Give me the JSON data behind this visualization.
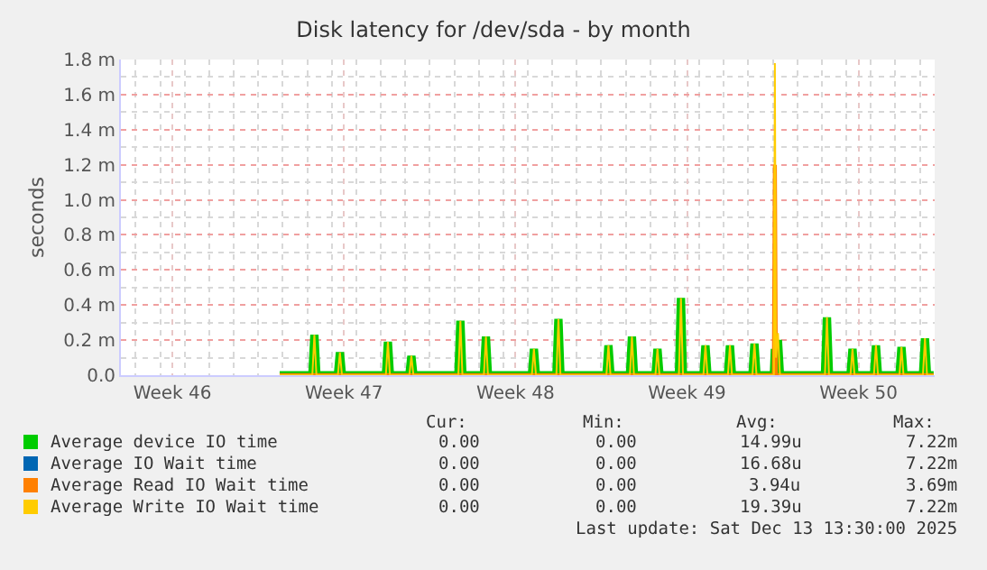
{
  "chart_data": {
    "type": "line",
    "title": "Disk latency for /dev/sda - by month",
    "ylabel": "seconds",
    "x": [
      "2025-11-16T21:00",
      "2025-11-18T05:00",
      "2025-11-18T07:00",
      "2025-11-18T09:00",
      "2025-11-19T06:00",
      "2025-11-19T08:00",
      "2025-11-19T10:00",
      "2025-11-21T05:00",
      "2025-11-21T07:00",
      "2025-11-21T09:00",
      "2025-11-22T04:00",
      "2025-11-22T06:00",
      "2025-11-22T08:00",
      "2025-11-24T04:00",
      "2025-11-24T06:00",
      "2025-11-24T08:00",
      "2025-11-25T05:00",
      "2025-11-25T07:00",
      "2025-11-25T09:00",
      "2025-11-27T04:00",
      "2025-11-27T06:00",
      "2025-11-27T08:00",
      "2025-11-28T04:00",
      "2025-11-28T06:00",
      "2025-11-28T08:00",
      "2025-11-30T05:00",
      "2025-11-30T07:00",
      "2025-11-30T09:00",
      "2025-12-01T04:00",
      "2025-12-01T06:00",
      "2025-12-01T08:00",
      "2025-12-02T05:00",
      "2025-12-02T07:00",
      "2025-12-02T09:00",
      "2025-12-03T04:00",
      "2025-12-03T06:00",
      "2025-12-03T08:00",
      "2025-12-04T04:00",
      "2025-12-04T06:00",
      "2025-12-04T08:00",
      "2025-12-05T04:00",
      "2025-12-05T06:00",
      "2025-12-05T08:00",
      "2025-12-06T04:00",
      "2025-12-06T06:00",
      "2025-12-06T08:00",
      "2025-12-07T01:00",
      "2025-12-07T02:00",
      "2025-12-07T03:00",
      "2025-12-07T05:00",
      "2025-12-07T07:00",
      "2025-12-09T03:00",
      "2025-12-09T05:00",
      "2025-12-09T07:00",
      "2025-12-10T04:00",
      "2025-12-10T06:00",
      "2025-12-10T08:00",
      "2025-12-11T03:00",
      "2025-12-11T05:00",
      "2025-12-11T07:00",
      "2025-12-12T04:00",
      "2025-12-12T06:00",
      "2025-12-12T08:00",
      "2025-12-13T03:00",
      "2025-12-13T05:00",
      "2025-12-13T07:00",
      "2025-12-13T13:30"
    ],
    "series": [
      {
        "name": "Average device IO time",
        "color": "#00cc00",
        "values": [
          0,
          0,
          0.23,
          0,
          0,
          0.13,
          0,
          0,
          0.19,
          0,
          0,
          0.11,
          0,
          0,
          0.31,
          0,
          0,
          0.22,
          0,
          0,
          0.15,
          0,
          0,
          0.32,
          0,
          0,
          0.17,
          0,
          0,
          0.22,
          0,
          0,
          0.15,
          0,
          0,
          0.44,
          0,
          0,
          0.17,
          0,
          0,
          0.17,
          0,
          0,
          0.18,
          0,
          0,
          0.15,
          0,
          0.2,
          0,
          0,
          0.33,
          0,
          0,
          0.15,
          0,
          0,
          0.17,
          0,
          0,
          0.16,
          0,
          0,
          0.21,
          0,
          0
        ]
      },
      {
        "name": "Average IO Wait time",
        "color": "#0066b3",
        "values": [
          null,
          null,
          null,
          null,
          null,
          null,
          null,
          null,
          null,
          null,
          null,
          null,
          null,
          null,
          null,
          null,
          null,
          null,
          null,
          null,
          null,
          null,
          null,
          null,
          null,
          null,
          null,
          null,
          null,
          null,
          null,
          null,
          null,
          null,
          null,
          null,
          null,
          null,
          null,
          null,
          null,
          null,
          null,
          null,
          null,
          null,
          null,
          null,
          null,
          null,
          null,
          null,
          null,
          null,
          null,
          null,
          null,
          null,
          null,
          null,
          null,
          null,
          null,
          null,
          null,
          null,
          null
        ]
      },
      {
        "name": "Average Read IO Wait time",
        "color": "#ff8000",
        "values": [
          0,
          0,
          0,
          0,
          0,
          0,
          0,
          0,
          0,
          0,
          0,
          0,
          0,
          0,
          0,
          0,
          0,
          0,
          0,
          0,
          0,
          0,
          0,
          0,
          0,
          0,
          0,
          0,
          0,
          0,
          0,
          0,
          0,
          0,
          0,
          0,
          0,
          0,
          0,
          0,
          0,
          0,
          0,
          0,
          0,
          0,
          0,
          1.2,
          0,
          0,
          0,
          0,
          0,
          0,
          0,
          0,
          0,
          0,
          0,
          0,
          0,
          0,
          0,
          0,
          0,
          0,
          0
        ]
      },
      {
        "name": "Average Write IO Wait time",
        "color": "#ffcc00",
        "values": [
          0,
          0,
          0.23,
          0,
          0,
          0.13,
          0,
          0,
          0.19,
          0,
          0,
          0.11,
          0,
          0,
          0.31,
          0,
          0,
          0.22,
          0,
          0,
          0.15,
          0,
          0,
          0.32,
          0,
          0,
          0.17,
          0,
          0,
          0.22,
          0,
          0,
          0.15,
          0,
          0,
          0.44,
          0,
          0,
          0.17,
          0,
          0,
          0.17,
          0,
          0,
          0.18,
          0,
          0,
          1.78,
          0.1,
          0.24,
          0,
          0,
          0.33,
          0,
          0,
          0.15,
          0,
          0,
          0.17,
          0,
          0,
          0.16,
          0,
          0,
          0.21,
          0,
          0
        ]
      }
    ],
    "xlim": [
      "2025-11-10T09:30",
      "2025-12-13T14:30"
    ],
    "xticks": [
      {
        "value": "2025-11-12T12:00",
        "label": "Week 46"
      },
      {
        "value": "2025-11-19T12:00",
        "label": "Week 47"
      },
      {
        "value": "2025-11-26T12:00",
        "label": "Week 48"
      },
      {
        "value": "2025-12-03T12:00",
        "label": "Week 49"
      },
      {
        "value": "2025-12-10T12:00",
        "label": "Week 50"
      }
    ],
    "ylim": [
      0,
      1.8
    ],
    "yticks": [
      {
        "value": 0,
        "label": "0.0"
      },
      {
        "value": 0.2,
        "label": "0.2 m"
      },
      {
        "value": 0.4,
        "label": "0.4 m"
      },
      {
        "value": 0.6,
        "label": "0.6 m"
      },
      {
        "value": 0.8,
        "label": "0.8 m"
      },
      {
        "value": 1.0,
        "label": "1.0 m"
      },
      {
        "value": 1.2,
        "label": "1.2 m"
      },
      {
        "value": 1.4,
        "label": "1.4 m"
      },
      {
        "value": 1.6,
        "label": "1.6 m"
      },
      {
        "value": 1.8,
        "label": "1.8 m"
      }
    ],
    "grid": true,
    "legend": "bottom",
    "marker": "none",
    "line_style": "solid",
    "annotations": [
      "Cur:",
      "Min:",
      "Avg:",
      "Max:",
      "0.00",
      "0.00",
      "14.99u",
      "7.22m",
      "0.00",
      "0.00",
      "16.68u",
      "7.22m",
      "0.00",
      "0.00",
      "3.94u",
      "3.69m",
      "0.00",
      "0.00",
      "19.39u",
      "7.22m",
      "Last update: Sat Dec 13 13:30:00 2025"
    ]
  }
}
